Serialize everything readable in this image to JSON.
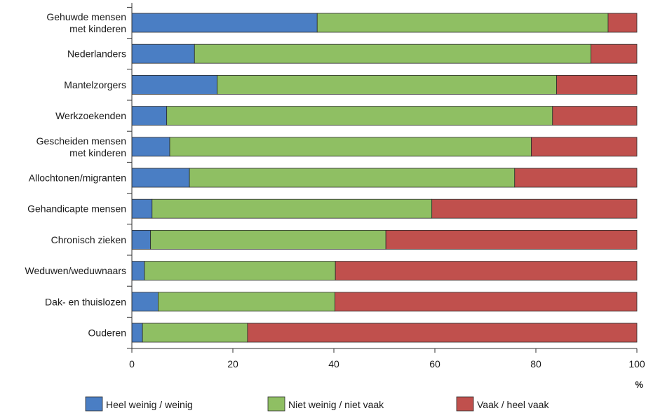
{
  "chart_data": {
    "type": "bar",
    "orientation": "horizontal",
    "stacked": true,
    "categories": [
      [
        "Gehuwde mensen",
        "met kinderen"
      ],
      [
        "Nederlanders"
      ],
      [
        "Mantelzorgers"
      ],
      [
        "Werkzoekenden"
      ],
      [
        "Gescheiden mensen",
        "met kinderen"
      ],
      [
        "Allochtonen/migranten"
      ],
      [
        "Gehandicapte mensen"
      ],
      [
        "Chronisch zieken"
      ],
      [
        "Weduwen/weduwnaars"
      ],
      [
        "Dak- en thuislozen"
      ],
      [
        "Ouderen"
      ]
    ],
    "series": [
      {
        "name": "Heel weinig / weinig",
        "color": "#4a7ec4",
        "values": [
          36.7,
          12.4,
          16.9,
          6.9,
          7.5,
          11.4,
          4.0,
          3.7,
          2.5,
          5.2,
          2.1
        ]
      },
      {
        "name": "Niet weinig / niet vaak",
        "color": "#8fbf63",
        "values": [
          57.6,
          78.5,
          67.2,
          76.4,
          71.6,
          64.4,
          55.4,
          46.6,
          37.8,
          35.0,
          20.8
        ]
      },
      {
        "name": "Vaak / heel vaak",
        "color": "#c0504d",
        "values": [
          5.7,
          9.1,
          15.9,
          16.7,
          20.9,
          24.2,
          40.6,
          49.7,
          59.7,
          59.8,
          77.1
        ]
      }
    ],
    "xlim": [
      0,
      100
    ],
    "xticks": [
      "0",
      "20",
      "40",
      "60",
      "80",
      "100"
    ],
    "xunit": "%",
    "grid": false,
    "legend_position": "bottom"
  }
}
